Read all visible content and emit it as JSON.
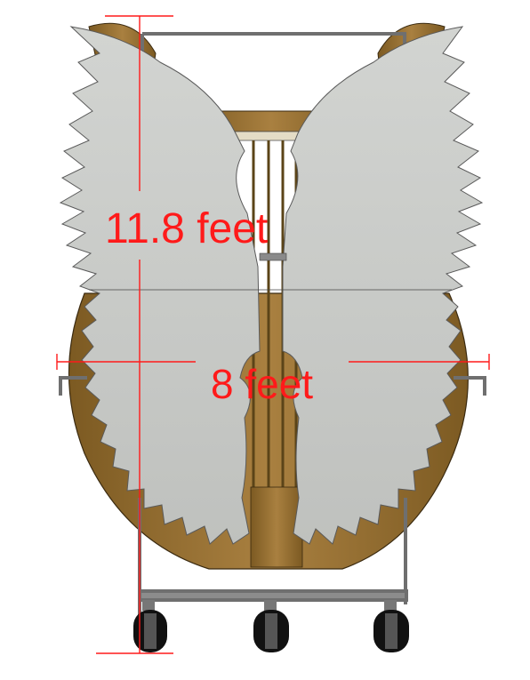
{
  "dimensions": {
    "height_label": "11.8 feet",
    "width_label": "8 feet"
  },
  "colors": {
    "dimension": "#ff1a1a",
    "wood": "#9a7434",
    "wood_dark": "#6b4e1c",
    "wing": "#c9cbc8",
    "wing_edge": "#5a5a5a",
    "frame": "#7a7a7a",
    "wheel": "#111111"
  },
  "icons": [
    "wheel-icon"
  ]
}
